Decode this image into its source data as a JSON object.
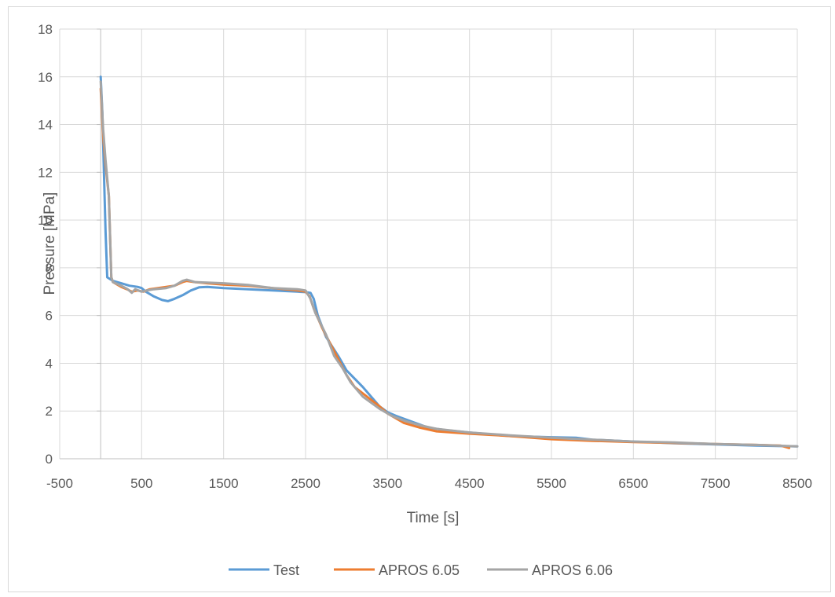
{
  "chart_data": {
    "type": "line",
    "xlabel": "Time [s]",
    "ylabel": "Pressure [MPa]",
    "xlim": [
      -500,
      8500
    ],
    "ylim": [
      0,
      18
    ],
    "x_ticks": [
      -500,
      500,
      1500,
      2500,
      3500,
      4500,
      5500,
      6500,
      7500,
      8500
    ],
    "y_ticks": [
      0,
      2,
      4,
      6,
      8,
      10,
      12,
      14,
      16,
      18
    ],
    "grid": true,
    "legend_position": "bottom",
    "series": [
      {
        "name": "Test",
        "color": "#5b9bd5",
        "points": [
          [
            0,
            16.0
          ],
          [
            20,
            14.5
          ],
          [
            40,
            12.0
          ],
          [
            60,
            9.5
          ],
          [
            80,
            7.6
          ],
          [
            150,
            7.45
          ],
          [
            250,
            7.35
          ],
          [
            350,
            7.25
          ],
          [
            450,
            7.2
          ],
          [
            500,
            7.15
          ],
          [
            550,
            7.0
          ],
          [
            650,
            6.8
          ],
          [
            750,
            6.65
          ],
          [
            820,
            6.6
          ],
          [
            900,
            6.7
          ],
          [
            1000,
            6.85
          ],
          [
            1100,
            7.05
          ],
          [
            1200,
            7.18
          ],
          [
            1300,
            7.2
          ],
          [
            1500,
            7.15
          ],
          [
            1800,
            7.1
          ],
          [
            2100,
            7.05
          ],
          [
            2400,
            7.0
          ],
          [
            2500,
            6.98
          ],
          [
            2560,
            6.95
          ],
          [
            2600,
            6.7
          ],
          [
            2650,
            6.0
          ],
          [
            2750,
            5.1
          ],
          [
            2900,
            4.3
          ],
          [
            3000,
            3.7
          ],
          [
            3200,
            3.0
          ],
          [
            3400,
            2.2
          ],
          [
            3500,
            1.95
          ],
          [
            3600,
            1.8
          ],
          [
            3800,
            1.55
          ],
          [
            4000,
            1.3
          ],
          [
            4200,
            1.2
          ],
          [
            4500,
            1.1
          ],
          [
            5000,
            0.95
          ],
          [
            5500,
            0.9
          ],
          [
            5800,
            0.88
          ],
          [
            6000,
            0.8
          ],
          [
            6500,
            0.72
          ],
          [
            7000,
            0.65
          ],
          [
            7500,
            0.6
          ],
          [
            8000,
            0.55
          ],
          [
            8500,
            0.52
          ]
        ]
      },
      {
        "name": "APROS 6.05",
        "color": "#ed7d31",
        "points": [
          [
            0,
            15.5
          ],
          [
            30,
            13.5
          ],
          [
            60,
            12.3
          ],
          [
            100,
            11.0
          ],
          [
            130,
            7.6
          ],
          [
            150,
            7.4
          ],
          [
            250,
            7.2
          ],
          [
            320,
            7.1
          ],
          [
            380,
            7.0
          ],
          [
            450,
            7.05
          ],
          [
            520,
            7.0
          ],
          [
            600,
            7.1
          ],
          [
            700,
            7.15
          ],
          [
            800,
            7.2
          ],
          [
            900,
            7.25
          ],
          [
            1000,
            7.4
          ],
          [
            1050,
            7.45
          ],
          [
            1150,
            7.4
          ],
          [
            1300,
            7.35
          ],
          [
            1500,
            7.3
          ],
          [
            1800,
            7.25
          ],
          [
            2100,
            7.15
          ],
          [
            2400,
            7.05
          ],
          [
            2500,
            7.0
          ],
          [
            2550,
            6.8
          ],
          [
            2600,
            6.3
          ],
          [
            2700,
            5.5
          ],
          [
            2850,
            4.5
          ],
          [
            3000,
            3.5
          ],
          [
            3100,
            3.0
          ],
          [
            3250,
            2.6
          ],
          [
            3400,
            2.2
          ],
          [
            3500,
            1.9
          ],
          [
            3700,
            1.5
          ],
          [
            3900,
            1.3
          ],
          [
            4100,
            1.15
          ],
          [
            4500,
            1.05
          ],
          [
            5000,
            0.95
          ],
          [
            5500,
            0.82
          ],
          [
            6000,
            0.75
          ],
          [
            6500,
            0.7
          ],
          [
            7000,
            0.66
          ],
          [
            7500,
            0.62
          ],
          [
            8000,
            0.58
          ],
          [
            8300,
            0.55
          ],
          [
            8400,
            0.45
          ]
        ]
      },
      {
        "name": "APROS 6.06",
        "color": "#a5a5a5",
        "points": [
          [
            0,
            15.8
          ],
          [
            30,
            13.8
          ],
          [
            60,
            12.5
          ],
          [
            100,
            11.0
          ],
          [
            130,
            7.6
          ],
          [
            150,
            7.4
          ],
          [
            250,
            7.25
          ],
          [
            330,
            7.1
          ],
          [
            380,
            6.95
          ],
          [
            420,
            7.1
          ],
          [
            500,
            7.0
          ],
          [
            560,
            7.05
          ],
          [
            650,
            7.1
          ],
          [
            800,
            7.15
          ],
          [
            900,
            7.25
          ],
          [
            1000,
            7.45
          ],
          [
            1050,
            7.5
          ],
          [
            1150,
            7.4
          ],
          [
            1300,
            7.38
          ],
          [
            1500,
            7.35
          ],
          [
            1800,
            7.28
          ],
          [
            2100,
            7.15
          ],
          [
            2400,
            7.1
          ],
          [
            2500,
            7.05
          ],
          [
            2560,
            6.7
          ],
          [
            2620,
            6.1
          ],
          [
            2750,
            5.2
          ],
          [
            2850,
            4.3
          ],
          [
            2950,
            3.8
          ],
          [
            3050,
            3.2
          ],
          [
            3200,
            2.6
          ],
          [
            3400,
            2.1
          ],
          [
            3550,
            1.8
          ],
          [
            3700,
            1.6
          ],
          [
            3900,
            1.4
          ],
          [
            4100,
            1.25
          ],
          [
            4500,
            1.1
          ],
          [
            5000,
            0.98
          ],
          [
            5500,
            0.88
          ],
          [
            6000,
            0.8
          ],
          [
            6500,
            0.72
          ],
          [
            7000,
            0.68
          ],
          [
            7500,
            0.62
          ],
          [
            8000,
            0.58
          ],
          [
            8500,
            0.52
          ]
        ]
      }
    ]
  }
}
